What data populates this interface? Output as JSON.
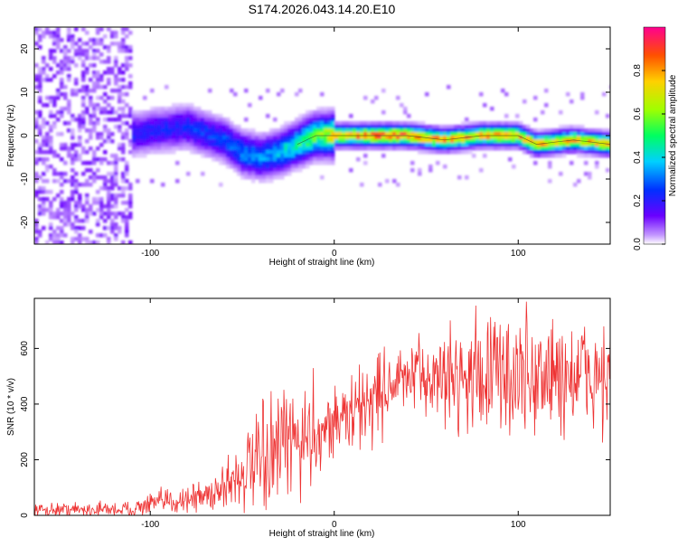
{
  "title": "S174.2026.043.14.20.E10",
  "chart_data": [
    {
      "type": "heatmap",
      "xlabel": "Height of straight line (km)",
      "ylabel": "Frequency (Hz)",
      "xlim": [
        -163,
        150
      ],
      "ylim": [
        -25,
        25
      ],
      "xticks": [
        -100,
        0,
        100
      ],
      "yticks": [
        -20,
        -10,
        0,
        10,
        20
      ],
      "colorbar": {
        "label": "Normalized spectral amplitude",
        "range": [
          0,
          1
        ],
        "ticks": [
          0.0,
          0.2,
          0.4,
          0.6,
          0.8
        ]
      },
      "ridge": {
        "x": [
          -115,
          -100,
          -80,
          -60,
          -50,
          -40,
          -30,
          -20,
          -10,
          0,
          20,
          40,
          60,
          80,
          100,
          110,
          130,
          150
        ],
        "freq": [
          0,
          1,
          2,
          -1,
          -4,
          -5,
          -4,
          -2,
          0,
          0,
          0,
          0,
          -1,
          0,
          0,
          -2,
          -1,
          -2
        ],
        "amplitude": [
          0.22,
          0.22,
          0.25,
          0.28,
          0.35,
          0.35,
          0.4,
          0.5,
          0.6,
          0.75,
          0.9,
          0.9,
          0.82,
          0.82,
          0.82,
          0.78,
          0.78,
          0.78
        ]
      },
      "noise_region": {
        "x_range": [
          -163,
          -110
        ],
        "amplitude": 0.1
      }
    },
    {
      "type": "line",
      "xlabel": "Height of straight line (km)",
      "ylabel": "SNR (10 * v/v)",
      "xlim": [
        -163,
        150
      ],
      "ylim": [
        0,
        780
      ],
      "xticks": [
        -100,
        0,
        100
      ],
      "yticks": [
        0,
        200,
        400,
        600
      ],
      "color": "#ee3333",
      "envelope": {
        "x": [
          -163,
          -110,
          -100,
          -70,
          -60,
          -50,
          -40,
          -30,
          -20,
          -10,
          0,
          10,
          20,
          30,
          40,
          60,
          80,
          100,
          120,
          150
        ],
        "mean": [
          20,
          22,
          40,
          70,
          110,
          150,
          180,
          230,
          270,
          300,
          340,
          360,
          420,
          470,
          490,
          500,
          510,
          500,
          500,
          500
        ],
        "spread": [
          12,
          14,
          20,
          30,
          50,
          70,
          90,
          100,
          110,
          90,
          60,
          70,
          90,
          70,
          60,
          80,
          110,
          120,
          110,
          100
        ]
      }
    }
  ]
}
